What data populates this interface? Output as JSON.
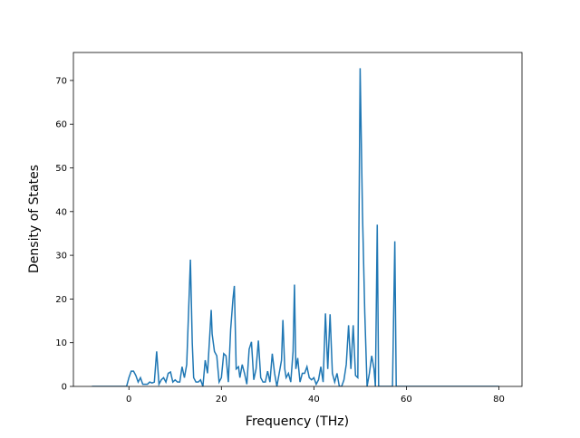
{
  "chart_data": {
    "type": "line",
    "x_label": "Frequency (THz)",
    "y_label": "Density of States",
    "color": "#1f77b4",
    "x": [
      -8,
      -0.5,
      0,
      0.5,
      1,
      1.5,
      2,
      2.5,
      3,
      3.5,
      4,
      4.5,
      5,
      5.5,
      6,
      6.5,
      7,
      7.5,
      8,
      8.5,
      9,
      9.5,
      10,
      10.5,
      11,
      11.5,
      12,
      12.5,
      13,
      13.3,
      13.7,
      14,
      14.5,
      15,
      15.5,
      16,
      16.5,
      17,
      17.5,
      17.8,
      18,
      18.5,
      19,
      19.5,
      20,
      20.5,
      21,
      21.5,
      22,
      22.5,
      22.8,
      23.2,
      23.7,
      24,
      24.5,
      25,
      25.5,
      26,
      26.5,
      27,
      27.5,
      28,
      28.5,
      29,
      29.5,
      30,
      30.5,
      31,
      31.5,
      32,
      32.5,
      33,
      33.3,
      33.7,
      34,
      34.5,
      35,
      35.5,
      35.8,
      36.1,
      36.5,
      37,
      37.5,
      38,
      38.5,
      39,
      39.5,
      40,
      40.5,
      41,
      41.5,
      42,
      42.5,
      43,
      43.5,
      44,
      44.5,
      45,
      45.5,
      46,
      46.5,
      47,
      47.5,
      48,
      48.5,
      49,
      49.5,
      50,
      50.5,
      51,
      51.5,
      52,
      52.5,
      53,
      53.3,
      53.7,
      54,
      57,
      57.5,
      57.8,
      80
    ],
    "values": [
      0,
      0,
      2,
      3.5,
      3.5,
      2.5,
      1,
      2,
      0.5,
      0.5,
      0.5,
      1,
      0.8,
      1,
      8,
      0.5,
      1.5,
      2,
      1,
      3,
      3.3,
      1,
      1.5,
      1,
      1,
      4.5,
      2,
      5,
      20,
      29,
      10,
      2,
      1,
      1,
      1.5,
      0,
      6,
      3,
      12,
      17.5,
      12,
      8,
      7,
      1,
      2,
      7.5,
      7,
      1,
      13,
      20,
      23,
      4,
      4.5,
      2,
      5,
      3,
      0.5,
      8.5,
      10.2,
      1.5,
      4,
      10.5,
      2,
      1,
      1,
      3.5,
      1,
      7.5,
      3,
      0,
      3,
      6,
      15.2,
      4,
      2,
      3,
      1,
      8,
      23.3,
      4,
      6.5,
      1,
      3,
      3,
      4.5,
      2,
      1.5,
      2,
      0.5,
      1.5,
      4.5,
      1,
      16.7,
      4,
      16.5,
      3,
      1,
      3,
      0,
      0,
      1.5,
      5,
      14,
      4,
      14,
      2.5,
      2,
      72.8,
      40,
      17,
      0,
      3,
      7,
      4,
      0,
      37,
      0,
      0,
      33.2,
      0,
      0
    ],
    "xlim": [
      -12,
      85
    ],
    "ylim": [
      0,
      76.4
    ],
    "xticks": [
      0,
      20,
      40,
      60,
      80
    ],
    "yticks": [
      0,
      10,
      20,
      30,
      40,
      50,
      60,
      70
    ]
  }
}
